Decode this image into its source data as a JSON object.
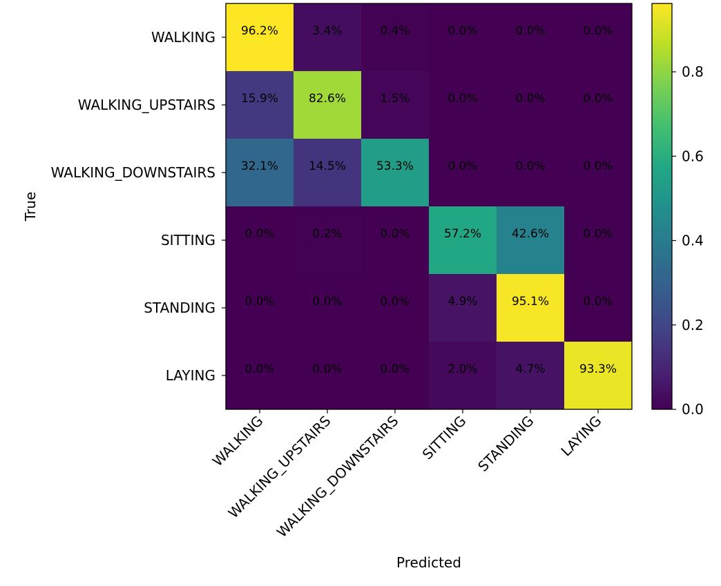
{
  "chart_data": {
    "type": "heatmap",
    "title": "",
    "xlabel": "Predicted",
    "ylabel": "True",
    "x_categories": [
      "WALKING",
      "WALKING_UPSTAIRS",
      "WALKING_DOWNSTAIRS",
      "SITTING",
      "STANDING",
      "LAYING"
    ],
    "y_categories": [
      "WALKING",
      "WALKING_UPSTAIRS",
      "WALKING_DOWNSTAIRS",
      "SITTING",
      "STANDING",
      "LAYING"
    ],
    "values": [
      [
        0.962,
        0.034,
        0.004,
        0.0,
        0.0,
        0.0
      ],
      [
        0.159,
        0.826,
        0.015,
        0.0,
        0.0,
        0.0
      ],
      [
        0.321,
        0.145,
        0.533,
        0.0,
        0.0,
        0.0
      ],
      [
        0.0,
        0.002,
        0.0,
        0.572,
        0.426,
        0.0
      ],
      [
        0.0,
        0.0,
        0.0,
        0.049,
        0.951,
        0.0
      ],
      [
        0.0,
        0.0,
        0.0,
        0.02,
        0.047,
        0.933
      ]
    ],
    "cell_labels": [
      [
        "96.2%",
        "3.4%",
        "0.4%",
        "0.0%",
        "0.0%",
        "0.0%"
      ],
      [
        "15.9%",
        "82.6%",
        "1.5%",
        "0.0%",
        "0.0%",
        "0.0%"
      ],
      [
        "32.1%",
        "14.5%",
        "53.3%",
        "0.0%",
        "0.0%",
        "0.0%"
      ],
      [
        "0.0%",
        "0.2%",
        "0.0%",
        "57.2%",
        "42.6%",
        "0.0%"
      ],
      [
        "0.0%",
        "0.0%",
        "0.0%",
        "4.9%",
        "95.1%",
        "0.0%"
      ],
      [
        "0.0%",
        "0.0%",
        "0.0%",
        "2.0%",
        "4.7%",
        "93.3%"
      ]
    ],
    "colormap": "viridis",
    "color_range": [
      0,
      0.962
    ],
    "colorbar": {
      "ticks": [
        0.0,
        0.2,
        0.4,
        0.6,
        0.8
      ],
      "tick_labels": [
        "0.0",
        "0.2",
        "0.4",
        "0.6",
        "0.8"
      ]
    },
    "grid": false
  }
}
